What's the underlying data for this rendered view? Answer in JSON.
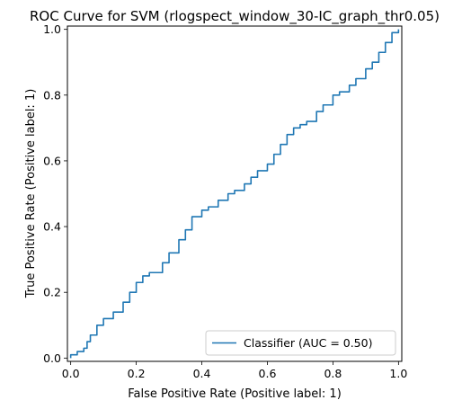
{
  "chart_data": {
    "type": "line",
    "title": "ROC Curve for SVM (rlogspect_window_30-IC_graph_thr0.05)",
    "xlabel": "False Positive Rate (Positive label: 1)",
    "ylabel": "True Positive Rate (Positive label: 1)",
    "xlim": [
      -0.01,
      1.01
    ],
    "ylim": [
      -0.01,
      1.01
    ],
    "xticks": [
      "0.0",
      "0.2",
      "0.4",
      "0.6",
      "0.8",
      "1.0"
    ],
    "yticks": [
      "0.0",
      "0.2",
      "0.4",
      "0.6",
      "0.8",
      "1.0"
    ],
    "grid": false,
    "legend": {
      "placement": "lower-right"
    },
    "series": [
      {
        "name": "Classifier (AUC = 0.50)",
        "color": "#1f77b4",
        "x": [
          0.0,
          0.0,
          0.02,
          0.04,
          0.05,
          0.06,
          0.08,
          0.1,
          0.13,
          0.16,
          0.18,
          0.2,
          0.22,
          0.24,
          0.28,
          0.3,
          0.33,
          0.35,
          0.37,
          0.4,
          0.42,
          0.45,
          0.48,
          0.5,
          0.53,
          0.55,
          0.57,
          0.6,
          0.62,
          0.64,
          0.66,
          0.68,
          0.7,
          0.72,
          0.75,
          0.77,
          0.8,
          0.82,
          0.85,
          0.87,
          0.9,
          0.92,
          0.94,
          0.96,
          0.98,
          1.0
        ],
        "y": [
          0.0,
          0.01,
          0.02,
          0.03,
          0.05,
          0.07,
          0.1,
          0.12,
          0.14,
          0.17,
          0.2,
          0.23,
          0.25,
          0.26,
          0.29,
          0.32,
          0.36,
          0.39,
          0.43,
          0.45,
          0.46,
          0.48,
          0.5,
          0.51,
          0.53,
          0.55,
          0.57,
          0.59,
          0.62,
          0.65,
          0.68,
          0.7,
          0.71,
          0.72,
          0.75,
          0.77,
          0.8,
          0.81,
          0.83,
          0.85,
          0.88,
          0.9,
          0.93,
          0.96,
          0.99,
          1.0
        ]
      }
    ]
  }
}
